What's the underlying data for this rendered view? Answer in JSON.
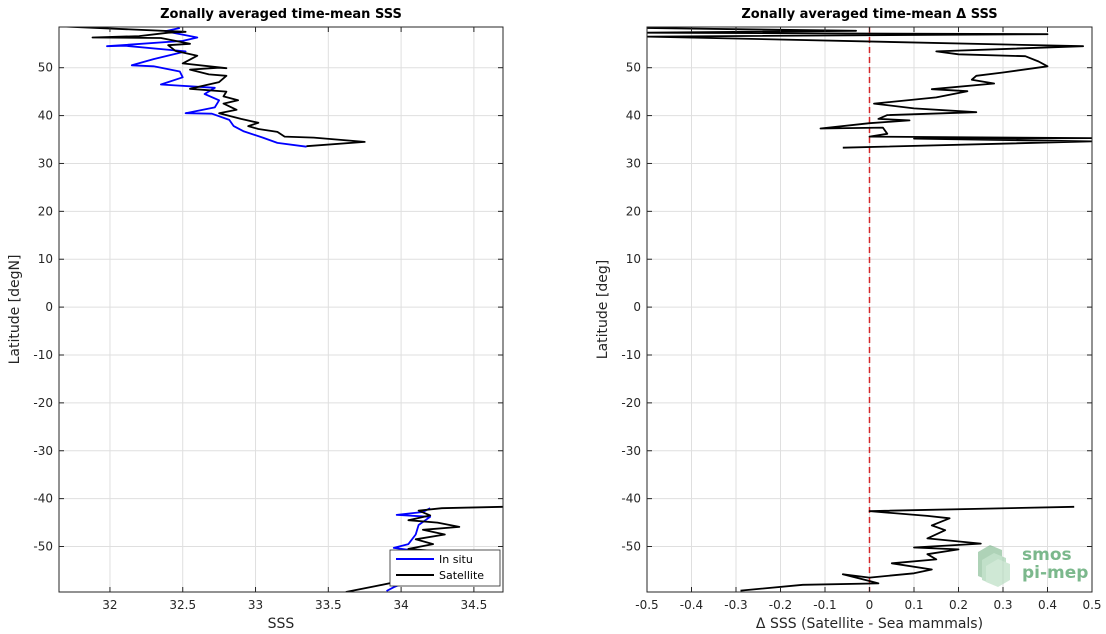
{
  "chart_data": [
    {
      "type": "line",
      "title": "Zonally averaged time-mean SSS",
      "xlabel": "SSS",
      "ylabel": "Latitude [degN]",
      "xlim": [
        31.65,
        34.7
      ],
      "ylim": [
        -59.5,
        58.5
      ],
      "xticks": [
        32,
        32.5,
        33,
        33.5,
        34,
        34.5
      ],
      "xtick_labels": [
        "32",
        "32.5",
        "33",
        "33.5",
        "34",
        "34.5"
      ],
      "yticks": [
        -50,
        -40,
        -30,
        -20,
        -10,
        0,
        10,
        20,
        30,
        40,
        50
      ],
      "ytick_labels": [
        "-50",
        "-40",
        "-30",
        "-20",
        "-10",
        "0",
        "10",
        "20",
        "30",
        "40",
        "50"
      ],
      "grid": true,
      "legend": "bottom-right",
      "series": [
        {
          "name": "In situ",
          "color": "#0000ff",
          "segments": [
            [
              [
                33.35,
                33.5
              ],
              [
                33.15,
                34.3
              ],
              [
                33.05,
                35.4
              ],
              [
                32.92,
                36.7
              ],
              [
                32.85,
                37.8
              ],
              [
                32.82,
                39.1
              ],
              [
                32.7,
                40.4
              ],
              [
                32.52,
                40.5
              ],
              [
                32.72,
                41.7
              ],
              [
                32.75,
                43.2
              ],
              [
                32.65,
                44.5
              ],
              [
                32.72,
                45.8
              ],
              [
                32.35,
                46.5
              ],
              [
                32.5,
                48.0
              ],
              [
                32.48,
                49.2
              ],
              [
                32.3,
                50.3
              ],
              [
                32.15,
                50.5
              ],
              [
                32.3,
                51.8
              ],
              [
                32.52,
                53.4
              ],
              [
                32.1,
                54.6
              ],
              [
                31.98,
                54.5
              ],
              [
                32.5,
                55.6
              ],
              [
                32.6,
                56.3
              ],
              [
                32.38,
                57.6
              ],
              [
                32.48,
                58.3
              ]
            ],
            [
              [
                34.2,
                -42.0
              ],
              [
                34.15,
                -42.8
              ],
              [
                33.97,
                -43.4
              ],
              [
                34.2,
                -43.8
              ],
              [
                34.12,
                -45.5
              ],
              [
                34.1,
                -47.5
              ],
              [
                34.05,
                -49.5
              ],
              [
                33.95,
                -50.3
              ],
              [
                34.1,
                -50.9
              ],
              [
                34.0,
                -52.0
              ],
              [
                34.05,
                -54.0
              ],
              [
                34.0,
                -56.0
              ],
              [
                34.03,
                -57.5
              ],
              [
                33.95,
                -58.5
              ],
              [
                33.9,
                -59.3
              ]
            ]
          ]
        },
        {
          "name": "Satellite",
          "color": "#000000",
          "segments": [
            [
              [
                33.35,
                33.6
              ],
              [
                33.75,
                34.5
              ],
              [
                33.4,
                35.4
              ],
              [
                33.2,
                35.6
              ],
              [
                33.15,
                36.6
              ],
              [
                33.02,
                37.2
              ],
              [
                32.95,
                37.8
              ],
              [
                33.02,
                38.5
              ],
              [
                32.9,
                39.3
              ],
              [
                32.75,
                40.5
              ],
              [
                32.87,
                41.2
              ],
              [
                32.78,
                42.5
              ],
              [
                32.88,
                43.2
              ],
              [
                32.78,
                44.0
              ],
              [
                32.8,
                45.0
              ],
              [
                32.55,
                45.6
              ],
              [
                32.75,
                47.0
              ],
              [
                32.8,
                48.3
              ],
              [
                32.68,
                48.6
              ],
              [
                32.55,
                49.6
              ],
              [
                32.75,
                50.0
              ],
              [
                32.8,
                49.9
              ],
              [
                32.5,
                50.9
              ],
              [
                32.6,
                52.5
              ],
              [
                32.45,
                53.5
              ],
              [
                32.4,
                54.7
              ],
              [
                32.55,
                55.0
              ],
              [
                32.35,
                56.2
              ],
              [
                31.88,
                56.3
              ],
              [
                32.2,
                56.6
              ],
              [
                32.4,
                57.3
              ],
              [
                32.52,
                57.5
              ],
              [
                31.68,
                58.6
              ]
            ],
            [
              [
                34.7,
                -41.7
              ],
              [
                34.28,
                -42.0
              ],
              [
                34.12,
                -42.5
              ],
              [
                34.2,
                -43.5
              ],
              [
                34.05,
                -44.5
              ],
              [
                34.25,
                -45.0
              ],
              [
                34.4,
                -45.9
              ],
              [
                34.15,
                -46.5
              ],
              [
                34.3,
                -47.5
              ],
              [
                34.1,
                -48.5
              ],
              [
                34.22,
                -49.5
              ],
              [
                34.05,
                -50.5
              ],
              [
                34.25,
                -51.0
              ],
              [
                34.05,
                -52.0
              ],
              [
                34.2,
                -53.0
              ],
              [
                34.1,
                -54.5
              ],
              [
                34.0,
                -55.0
              ],
              [
                34.25,
                -55.8
              ],
              [
                34.0,
                -56.3
              ],
              [
                34.2,
                -57.0
              ],
              [
                33.95,
                -57.5
              ],
              [
                33.82,
                -58.3
              ],
              [
                33.62,
                -59.5
              ]
            ]
          ]
        }
      ]
    },
    {
      "type": "line",
      "title": "Zonally averaged time-mean Δ SSS",
      "xlabel": "Δ SSS (Satellite - Sea mammals)",
      "ylabel": "Latitude [deg]",
      "xlim": [
        -0.5,
        0.5
      ],
      "ylim": [
        -59.5,
        58.5
      ],
      "xticks": [
        -0.5,
        -0.4,
        -0.3,
        -0.2,
        -0.1,
        0,
        0.1,
        0.2,
        0.3,
        0.4,
        0.5
      ],
      "xtick_labels": [
        "-0.5",
        "-0.4",
        "-0.3",
        "-0.2",
        "-0.1",
        "0",
        "0.1",
        "0.2",
        "0.3",
        "0.4",
        "0.5"
      ],
      "yticks": [
        -50,
        -40,
        -30,
        -20,
        -10,
        0,
        10,
        20,
        30,
        40,
        50
      ],
      "ytick_labels": [
        "-50",
        "-40",
        "-30",
        "-20",
        "-10",
        "0",
        "10",
        "20",
        "30",
        "40",
        "50"
      ],
      "grid": true,
      "reference_line": {
        "x": 0,
        "color": "#d62728",
        "style": "dashed"
      },
      "series": [
        {
          "color": "#000000",
          "segments": [
            [
              [
                -0.06,
                33.3
              ],
              [
                0.5,
                34.6
              ],
              [
                0.1,
                35.2
              ],
              [
                0.5,
                35.3
              ],
              [
                0.0,
                35.6
              ],
              [
                0.04,
                36.2
              ],
              [
                0.03,
                37.5
              ],
              [
                -0.11,
                37.3
              ],
              [
                0.0,
                38.4
              ],
              [
                0.09,
                39.0
              ],
              [
                0.02,
                39.3
              ],
              [
                0.04,
                40.1
              ],
              [
                0.24,
                40.7
              ],
              [
                0.1,
                41.5
              ],
              [
                0.01,
                42.5
              ],
              [
                0.15,
                43.8
              ],
              [
                0.22,
                45.1
              ],
              [
                0.14,
                45.5
              ],
              [
                0.28,
                46.7
              ],
              [
                0.23,
                47.5
              ],
              [
                0.24,
                48.3
              ],
              [
                0.3,
                49.0
              ],
              [
                0.4,
                50.3
              ],
              [
                0.38,
                51.3
              ],
              [
                0.35,
                52.4
              ],
              [
                0.2,
                52.8
              ],
              [
                0.15,
                53.4
              ],
              [
                0.48,
                54.5
              ],
              [
                -0.5,
                56.5
              ],
              [
                0.4,
                57.0
              ],
              [
                -0.5,
                57.3
              ],
              [
                -0.03,
                57.7
              ],
              [
                -0.5,
                58.3
              ]
            ],
            [
              [
                0.46,
                -41.7
              ],
              [
                0.0,
                -42.6
              ],
              [
                0.13,
                -43.6
              ],
              [
                0.18,
                -44.1
              ],
              [
                0.14,
                -45.6
              ],
              [
                0.17,
                -46.6
              ],
              [
                0.13,
                -48.3
              ],
              [
                0.25,
                -49.4
              ],
              [
                0.1,
                -50.2
              ],
              [
                0.2,
                -50.6
              ],
              [
                0.13,
                -51.6
              ],
              [
                0.15,
                -52.7
              ],
              [
                0.05,
                -53.5
              ],
              [
                0.14,
                -54.8
              ],
              [
                0.1,
                -55.6
              ],
              [
                0.0,
                -56.5
              ],
              [
                -0.06,
                -55.8
              ],
              [
                0.0,
                -57.2
              ],
              [
                0.02,
                -57.7
              ],
              [
                -0.15,
                -58.0
              ],
              [
                -0.29,
                -59.2
              ]
            ]
          ]
        }
      ]
    }
  ],
  "logo": {
    "line1": "smos",
    "line2": "pi-mep"
  }
}
